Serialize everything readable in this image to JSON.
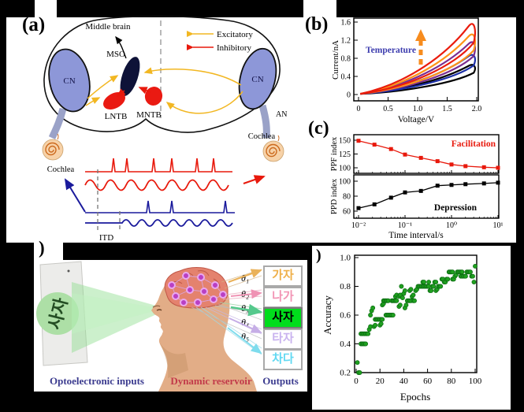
{
  "panels": {
    "a": {
      "label": "(a)",
      "texts": {
        "middle_brain": "Middle brain",
        "mso": "MSO",
        "lntb": "LNTB",
        "mntb": "MNTB",
        "cn_left": "CN",
        "cn_right": "CN",
        "an": "AN",
        "cochlea_left": "Cochlea",
        "cochlea_right": "Cochlea",
        "itd": "ITD"
      },
      "legend": [
        {
          "label": "Excitatory",
          "color": "#f2b722"
        },
        {
          "label": "Inhibitory",
          "color": "#e8190c"
        }
      ],
      "colors": {
        "cn_fill": "#8d97d8",
        "mso_fill": "#0e1238",
        "nucleus_red": "#ea1a12",
        "spike_red": "#e8190c",
        "spike_blue": "#1a1a9c",
        "cochlea": "#cc6a1e"
      }
    },
    "b": {
      "label": "(b)"
    },
    "c": {
      "label": "(c)"
    },
    "d": {
      "label": ")",
      "card_text": "사자",
      "theta": [
        "θ₁",
        "θ₂",
        "θ₃",
        "θ₄",
        "θ₅"
      ],
      "outputs": [
        {
          "text": "가자",
          "color": "#efb04a",
          "bg": "#ffffff"
        },
        {
          "text": "나가",
          "color": "#f295b5",
          "bg": "#ffffff"
        },
        {
          "text": "사자",
          "color": "#000000",
          "bg": "#00dd1c"
        },
        {
          "text": "타자",
          "color": "#c9b3ef",
          "bg": "#ffffff"
        },
        {
          "text": "차다",
          "color": "#62d9f2",
          "bg": "#ffffff"
        }
      ],
      "arrow_colors": [
        "#eab25a",
        "#ef93b4",
        "#55c98c",
        "#c6aee6",
        "#7edced"
      ],
      "captions": {
        "inputs": "Optoelectronic inputs",
        "reservoir": "Dynamic reservoir",
        "outputs": "Outputs"
      }
    },
    "e": {
      "label": ")"
    }
  },
  "chart_data": [
    {
      "panel": "b",
      "type": "line",
      "xlabel": "Voltage/V",
      "ylabel": "Current/nA",
      "xlim": [
        0,
        2
      ],
      "ylim": [
        0,
        1.6
      ],
      "xticks": [
        0,
        0.5,
        1.0,
        1.5,
        2.0
      ],
      "xtick_labels": [
        "0",
        "0.5",
        "1.0",
        "1.5",
        "2.0"
      ],
      "yticks": [
        0,
        0.4,
        0.8,
        1.2,
        1.6
      ],
      "ytick_labels": [
        "0",
        "0.4",
        "0.8",
        "1.2",
        "1.6"
      ],
      "annotation": "Temperature",
      "annotation_color": "#3c3cae",
      "arrow": {
        "direction": "up",
        "color": "#f78c1e",
        "style": "dashed"
      },
      "description": "Pinched I-V hysteresis loops growing with temperature",
      "series": [
        {
          "name": "curve_1",
          "color": "#000000",
          "peak_current_nA": 0.65,
          "peak_voltage_V": 1.9
        },
        {
          "name": "curve_2",
          "color": "#1b2fa8",
          "peak_current_nA": 0.87,
          "peak_voltage_V": 1.9
        },
        {
          "name": "curve_3",
          "color": "#7b2d90",
          "peak_current_nA": 1.15,
          "peak_voltage_V": 1.9
        },
        {
          "name": "curve_4",
          "color": "#ff9418",
          "peak_current_nA": 1.32,
          "peak_voltage_V": 1.9
        },
        {
          "name": "curve_5",
          "color": "#ea1c0d",
          "peak_current_nA": 1.55,
          "peak_voltage_V": 1.9
        }
      ]
    },
    {
      "panel": "c",
      "type": "line+scatter",
      "xlabel": "Time interval/s",
      "xscale": "log",
      "xlim": [
        0.01,
        10
      ],
      "xtick_labels": [
        "10⁻²",
        "10⁻¹",
        "10⁰",
        "10¹"
      ],
      "xtick_exponents": [
        -2,
        -1,
        0,
        1
      ],
      "subplots": [
        {
          "ylabel": "PPF index",
          "yticks": [
            100,
            125,
            150
          ],
          "annotation": "Facilitation",
          "color": "#e8190c",
          "x": [
            0.01,
            0.022,
            0.05,
            0.1,
            0.22,
            0.5,
            1,
            2,
            5,
            10
          ],
          "y": [
            149,
            142,
            134,
            124,
            118,
            112,
            106,
            103,
            101,
            100
          ]
        },
        {
          "ylabel": "PPD index",
          "yticks": [
            60,
            80,
            100
          ],
          "annotation": "Depression",
          "color": "#000000",
          "x": [
            0.01,
            0.022,
            0.05,
            0.1,
            0.22,
            0.5,
            1,
            2,
            5,
            10
          ],
          "y": [
            64,
            69,
            78,
            85,
            87,
            94,
            95,
            96,
            97,
            98
          ]
        }
      ]
    },
    {
      "panel": "e",
      "type": "scatter",
      "xlabel": "Epochs",
      "ylabel": "Accuracy",
      "xlim": [
        0,
        100
      ],
      "ylim": [
        0.13,
        1.02
      ],
      "xticks": [
        0,
        20,
        40,
        60,
        80,
        100
      ],
      "xtick_labels": [
        "0",
        "20",
        "40",
        "60",
        "80",
        "100"
      ],
      "yticks": [
        0.2,
        0.4,
        0.6,
        0.8,
        1.0
      ],
      "ytick_labels": [
        "0.2",
        "0.4",
        "0.6",
        "0.8",
        "1.0"
      ],
      "marker_color": "#1fa01f",
      "points": [
        [
          1,
          0.27
        ],
        [
          2,
          0.2
        ],
        [
          3,
          0.2
        ],
        [
          4,
          0.4
        ],
        [
          5,
          0.4
        ],
        [
          6,
          0.4
        ],
        [
          7,
          0.4
        ],
        [
          8,
          0.4
        ],
        [
          4,
          0.47
        ],
        [
          5,
          0.47
        ],
        [
          6,
          0.47
        ],
        [
          7,
          0.47
        ],
        [
          8,
          0.47
        ],
        [
          9,
          0.47
        ],
        [
          10,
          0.47
        ],
        [
          11,
          0.5
        ],
        [
          12,
          0.52
        ],
        [
          12,
          0.6
        ],
        [
          13,
          0.63
        ],
        [
          14,
          0.65
        ],
        [
          15,
          0.52
        ],
        [
          16,
          0.53
        ],
        [
          16,
          0.57
        ],
        [
          17,
          0.57
        ],
        [
          18,
          0.57
        ],
        [
          19,
          0.57
        ],
        [
          20,
          0.57
        ],
        [
          21,
          0.57
        ],
        [
          22,
          0.57
        ],
        [
          20,
          0.53
        ],
        [
          21,
          0.54
        ],
        [
          22,
          0.67
        ],
        [
          23,
          0.68
        ],
        [
          23,
          0.7
        ],
        [
          24,
          0.7
        ],
        [
          25,
          0.7
        ],
        [
          26,
          0.7
        ],
        [
          27,
          0.7
        ],
        [
          25,
          0.6
        ],
        [
          26,
          0.6
        ],
        [
          27,
          0.6
        ],
        [
          28,
          0.6
        ],
        [
          29,
          0.6
        ],
        [
          30,
          0.6
        ],
        [
          31,
          0.6
        ],
        [
          30,
          0.7
        ],
        [
          31,
          0.7
        ],
        [
          32,
          0.7
        ],
        [
          33,
          0.7
        ],
        [
          34,
          0.7
        ],
        [
          33,
          0.73
        ],
        [
          34,
          0.74
        ],
        [
          36,
          0.73
        ],
        [
          37,
          0.74
        ],
        [
          36,
          0.66
        ],
        [
          37,
          0.67
        ],
        [
          38,
          0.8
        ],
        [
          39,
          0.72
        ],
        [
          40,
          0.75
        ],
        [
          41,
          0.77
        ],
        [
          41,
          0.65
        ],
        [
          42,
          0.67
        ],
        [
          43,
          0.7
        ],
        [
          44,
          0.7
        ],
        [
          45,
          0.7
        ],
        [
          46,
          0.7
        ],
        [
          45,
          0.77
        ],
        [
          46,
          0.78
        ],
        [
          47,
          0.73
        ],
        [
          48,
          0.74
        ],
        [
          48,
          0.7
        ],
        [
          49,
          0.7
        ],
        [
          50,
          0.77
        ],
        [
          51,
          0.78
        ],
        [
          52,
          0.8
        ],
        [
          53,
          0.8
        ],
        [
          54,
          0.8
        ],
        [
          55,
          0.8
        ],
        [
          56,
          0.8
        ],
        [
          57,
          0.8
        ],
        [
          58,
          0.8
        ],
        [
          56,
          0.83
        ],
        [
          57,
          0.83
        ],
        [
          59,
          0.8
        ],
        [
          60,
          0.8
        ],
        [
          61,
          0.8
        ],
        [
          61,
          0.83
        ],
        [
          62,
          0.77
        ],
        [
          63,
          0.77
        ],
        [
          64,
          0.8
        ],
        [
          65,
          0.8
        ],
        [
          66,
          0.83
        ],
        [
          67,
          0.83
        ],
        [
          67,
          0.77
        ],
        [
          68,
          0.78
        ],
        [
          69,
          0.8
        ],
        [
          70,
          0.8
        ],
        [
          71,
          0.8
        ],
        [
          72,
          0.85
        ],
        [
          73,
          0.85
        ],
        [
          74,
          0.83
        ],
        [
          75,
          0.83
        ],
        [
          76,
          0.85
        ],
        [
          77,
          0.85
        ],
        [
          78,
          0.9
        ],
        [
          79,
          0.9
        ],
        [
          80,
          0.9
        ],
        [
          81,
          0.9
        ],
        [
          81,
          0.85
        ],
        [
          82,
          0.85
        ],
        [
          83,
          0.87
        ],
        [
          84,
          0.88
        ],
        [
          85,
          0.9
        ],
        [
          86,
          0.9
        ],
        [
          87,
          0.9
        ],
        [
          88,
          0.9
        ],
        [
          89,
          0.9
        ],
        [
          88,
          0.87
        ],
        [
          89,
          0.87
        ],
        [
          90,
          0.87
        ],
        [
          91,
          0.87
        ],
        [
          92,
          0.87
        ],
        [
          93,
          0.9
        ],
        [
          94,
          0.9
        ],
        [
          95,
          0.9
        ],
        [
          96,
          0.9
        ],
        [
          97,
          0.87
        ],
        [
          98,
          0.87
        ],
        [
          99,
          0.83
        ],
        [
          100,
          0.94
        ]
      ]
    }
  ]
}
